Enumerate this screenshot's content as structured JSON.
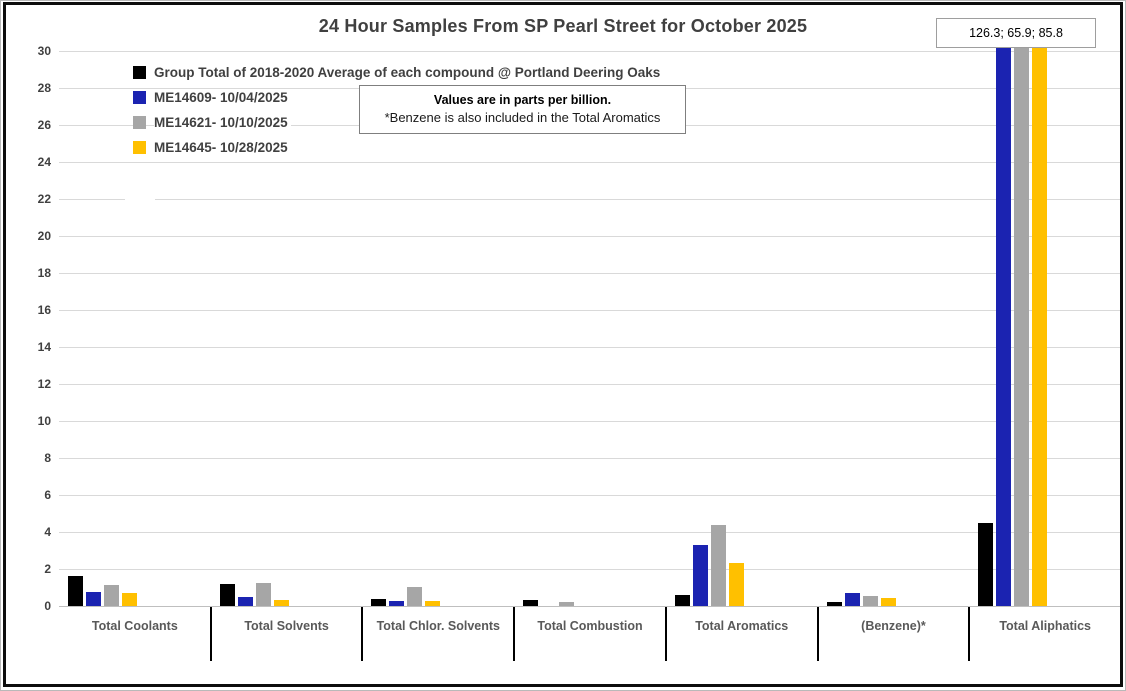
{
  "title": "24 Hour Samples From SP Pearl Street for October 2025",
  "annotation_box": {
    "text": "126.3; 65.9; 85.8"
  },
  "note": {
    "line1": "Values are in parts per billion.",
    "line2": "*Benzene is also included in the Total Aromatics"
  },
  "colors": {
    "group_total": "#000000",
    "sample_1": "#1b23b1",
    "sample_2": "#a6a6a6",
    "sample_3": "#ffc000",
    "gridline": "#d9d9d9"
  },
  "chart_data": {
    "type": "bar",
    "title": "24 Hour Samples From SP Pearl Street for October 2025",
    "units": "parts per billion",
    "categories": [
      "Total Coolants",
      "Total Solvents",
      "Total Chlor. Solvents",
      "Total Combustion",
      "Total Aromatics",
      "(Benzene)*",
      "Total Aliphatics"
    ],
    "series": [
      {
        "name": "Group Total of 2018-2020 Average of each compound @ Portland Deering Oaks",
        "color": "#000000",
        "values": [
          1.6,
          1.2,
          0.4,
          0.3,
          0.6,
          0.2,
          4.5
        ]
      },
      {
        "name": "ME14609- 10/04/2025",
        "color": "#1b23b1",
        "values": [
          0.75,
          0.5,
          0.25,
          0,
          3.3,
          0.7,
          126.3
        ]
      },
      {
        "name": "ME14621- 10/10/2025",
        "color": "#a6a6a6",
        "values": [
          1.15,
          1.25,
          1.05,
          0.2,
          4.4,
          0.55,
          65.9
        ]
      },
      {
        "name": "ME14645- 10/28/2025",
        "color": "#ffc000",
        "values": [
          0.7,
          0.35,
          0.25,
          0,
          2.3,
          0.45,
          85.8
        ]
      }
    ],
    "xlabel": "",
    "ylabel": "",
    "ylim": [
      0,
      30
    ],
    "y_ticks": [
      0,
      2,
      4,
      6,
      8,
      10,
      12,
      14,
      16,
      18,
      20,
      22,
      24,
      26,
      28,
      30
    ],
    "grid": true,
    "legend_position": "top-left",
    "clipped_values_note": "126.3; 65.9; 85.8"
  }
}
